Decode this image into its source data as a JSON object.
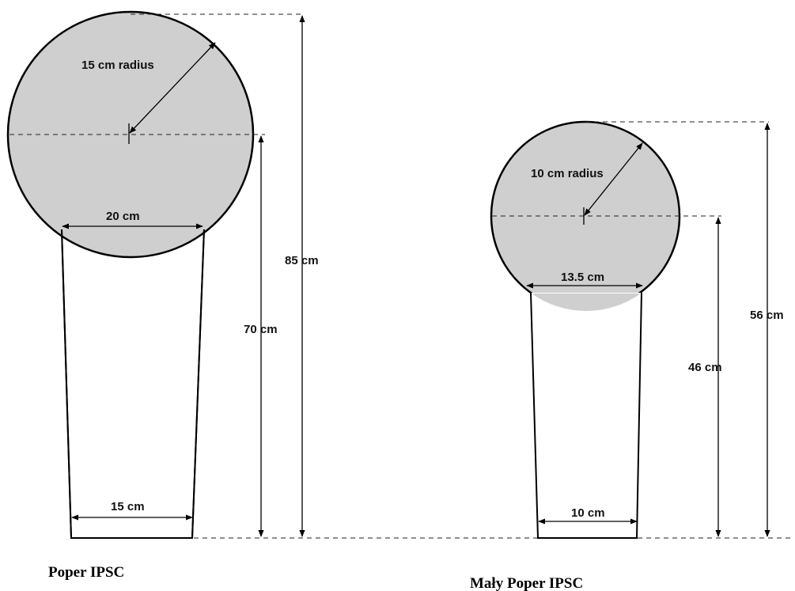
{
  "colors": {
    "target_fill": "#cfcfcf",
    "outline": "#000000",
    "background": "#ffffff"
  },
  "targets": [
    {
      "caption": "Poper IPSC",
      "radius_label": "15 cm radius",
      "plate_width_label": "20 cm",
      "base_width_label": "15 cm",
      "center_height_label": "70 cm",
      "total_height_label": "85 cm"
    },
    {
      "caption": "Mały Poper IPSC",
      "radius_label": "10 cm radius",
      "plate_width_label": "13.5 cm",
      "base_width_label": "10 cm",
      "center_height_label": "46 cm",
      "total_height_label": "56 cm"
    }
  ]
}
